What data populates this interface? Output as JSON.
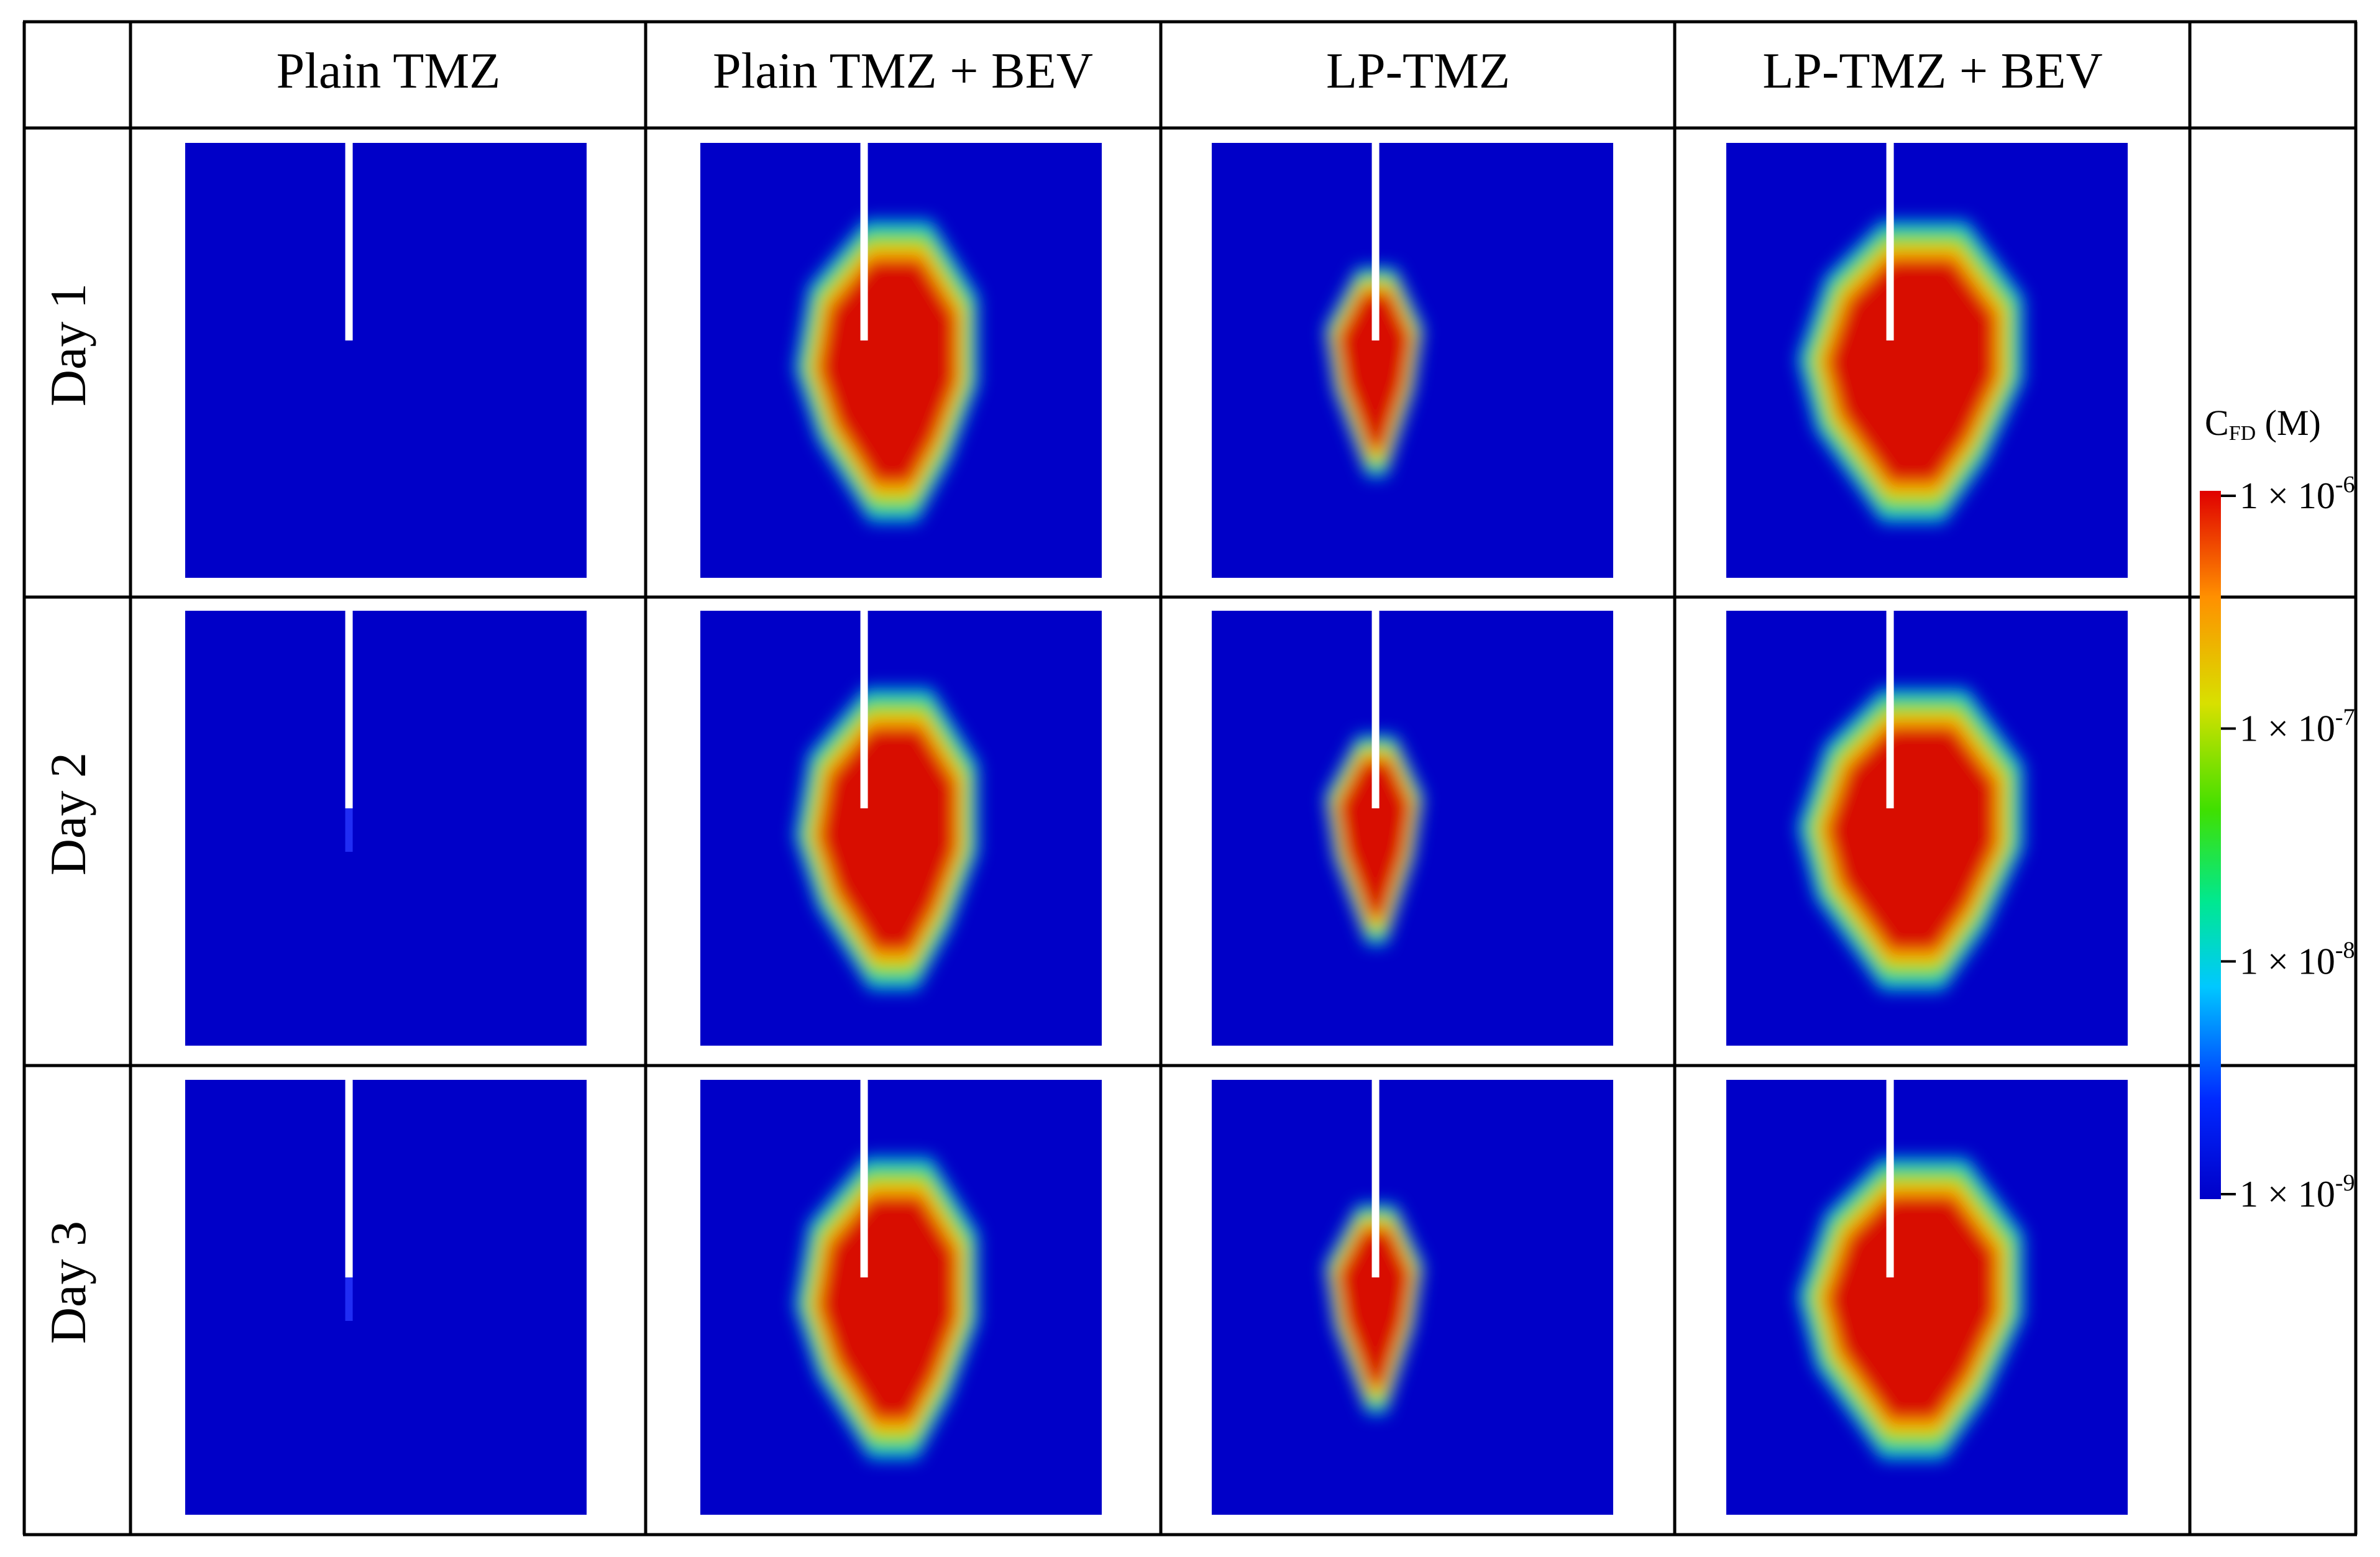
{
  "columns": [
    {
      "id": "plain-tmz",
      "label": "Plain TMZ"
    },
    {
      "id": "plain-tmz-bev",
      "label": "Plain TMZ + BEV"
    },
    {
      "id": "lp-tmz",
      "label": "LP-TMZ"
    },
    {
      "id": "lp-tmz-bev",
      "label": "LP-TMZ + BEV"
    }
  ],
  "rows": [
    {
      "id": "day-1",
      "label": "Day 1"
    },
    {
      "id": "day-2",
      "label": "Day 2"
    },
    {
      "id": "day-3",
      "label": "Day 3"
    }
  ],
  "colorbar": {
    "title_main": "C",
    "title_sub": "FD",
    "title_unit": " (M)",
    "scale": "log",
    "colormap": [
      "#0000c8",
      "#0020ff",
      "#00c8ff",
      "#00e890",
      "#40e000",
      "#d8e000",
      "#ff9000",
      "#e00000"
    ],
    "ticks": [
      {
        "mantissa": "1 × 10",
        "exponent": "-6",
        "value": 1e-06
      },
      {
        "mantissa": "1 × 10",
        "exponent": "-7",
        "value": 1e-07
      },
      {
        "mantissa": "1 × 10",
        "exponent": "-8",
        "value": 1e-08
      },
      {
        "mantissa": "1 × 10",
        "exponent": "-9",
        "value": 1e-09
      }
    ]
  },
  "colors": {
    "background_field": "#0000c8",
    "needle": "#ffffff",
    "high": "#d81000",
    "grid": "#000000"
  }
}
